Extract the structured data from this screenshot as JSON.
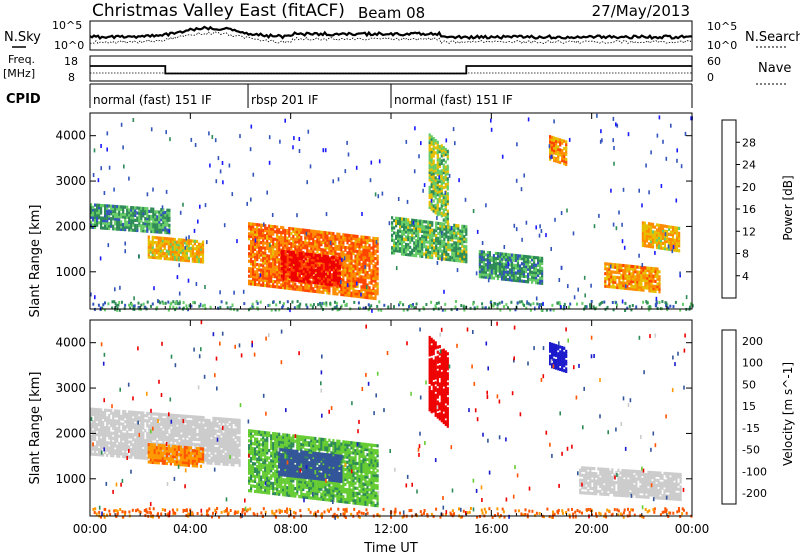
{
  "header": {
    "title": "Christmas Valley East (fitACF)",
    "beam": "Beam 08",
    "date": "27/May/2013"
  },
  "nsky_panel": {
    "left_label": "N.Sky",
    "right_label": "N.Search",
    "left_ticks": [
      "10^5",
      "10^0"
    ],
    "right_ticks": [
      "10^5",
      "10^0"
    ]
  },
  "freq_panel": {
    "left_label_1": "Freq.",
    "left_label_2": "[MHz]",
    "right_label": "Nave",
    "left_ticks": [
      "18",
      "8"
    ],
    "right_ticks": [
      "60",
      "0"
    ],
    "freq_steps": [
      {
        "t0": 0,
        "t1": 3,
        "v": 14
      },
      {
        "t0": 3,
        "t1": 15,
        "v": 11
      },
      {
        "t0": 15,
        "t1": 24,
        "v": 14
      }
    ]
  },
  "cpid": {
    "label": "CPID",
    "segments": [
      {
        "t0": 0,
        "t1": 6.3,
        "label": "normal (fast) 151 IF"
      },
      {
        "t0": 6.3,
        "t1": 12,
        "label": "rbsp 201 IF"
      },
      {
        "t0": 12,
        "t1": 24,
        "label": "normal (fast) 151 IF"
      }
    ]
  },
  "power_panel": {
    "ylabel": "Slant Range [km]",
    "yticks": [
      "1000",
      "2000",
      "3000",
      "4000"
    ],
    "scale_label": "Power [dB]",
    "scale_ticks": [
      "4",
      "8",
      "12",
      "16",
      "20",
      "24",
      "28"
    ],
    "colors": [
      "#1a1aff",
      "#3355bb",
      "#2e8b57",
      "#66cc66",
      "#e6c000",
      "#ff8c00",
      "#ff4500",
      "#ee0000"
    ]
  },
  "velocity_panel": {
    "ylabel": "Slant Range [km]",
    "yticks": [
      "1000",
      "2000",
      "3000",
      "4000"
    ],
    "scale_label": "Velocity [m s^-1]",
    "scale_ticks": [
      "200",
      "100",
      "50",
      "15",
      "-15",
      "-50",
      "-100",
      "-200"
    ],
    "colors": [
      "#1a1acc",
      "#335599",
      "#2e8b57",
      "#66cc33",
      "#cccccc",
      "#ff9900",
      "#ff5500",
      "#ee0000"
    ]
  },
  "x_axis": {
    "label": "Time UT",
    "ticks": [
      "00:00",
      "04:00",
      "08:00",
      "12:00",
      "16:00",
      "20:00",
      "00:00"
    ]
  },
  "chart_data": {
    "type": "heatmap",
    "title": "Christmas Valley East (fitACF)",
    "subtitle": "Beam 08",
    "date": "27/May/2013",
    "xlabel": "Time UT",
    "ylabel": "Slant Range [km]",
    "xlim_hours": [
      0,
      24
    ],
    "ylim_km": [
      180,
      4500
    ],
    "power_scale_db": [
      0,
      30
    ],
    "velocity_scale_ms": [
      -200,
      200
    ],
    "power_features": [
      {
        "t0": 0.0,
        "t1": 3.2,
        "r0": 1900,
        "r1": 2400,
        "db": 10
      },
      {
        "t0": 2.3,
        "t1": 4.5,
        "r0": 1250,
        "r1": 1700,
        "db": 18
      },
      {
        "t0": 6.3,
        "t1": 11.5,
        "r0": 550,
        "r1": 1900,
        "db": 22
      },
      {
        "t0": 7.6,
        "t1": 10.0,
        "r0": 750,
        "r1": 1400,
        "db": 28
      },
      {
        "t0": 12.0,
        "t1": 15.0,
        "r0": 1300,
        "r1": 2100,
        "db": 12
      },
      {
        "t0": 13.5,
        "t1": 14.3,
        "r0": 2200,
        "r1": 3800,
        "db": 14
      },
      {
        "t0": 15.5,
        "t1": 18.0,
        "r0": 800,
        "r1": 1400,
        "db": 10
      },
      {
        "t0": 18.3,
        "t1": 19.0,
        "r0": 3400,
        "r1": 3900,
        "db": 20
      },
      {
        "t0": 20.5,
        "t1": 22.7,
        "r0": 600,
        "r1": 1100,
        "db": 20
      },
      {
        "t0": 22.0,
        "t1": 23.5,
        "r0": 1500,
        "r1": 2000,
        "db": 18
      }
    ],
    "velocity_features": [
      {
        "t0": 0.0,
        "t1": 6.0,
        "r0": 1400,
        "r1": 2400,
        "v": 0
      },
      {
        "t0": 2.3,
        "t1": 4.5,
        "r0": 1300,
        "r1": 1700,
        "v": -30
      },
      {
        "t0": 6.3,
        "t1": 11.5,
        "r0": 550,
        "r1": 1900,
        "v": 30
      },
      {
        "t0": 7.5,
        "t1": 10.0,
        "r0": 1000,
        "r1": 1600,
        "v": 120
      },
      {
        "t0": 13.5,
        "t1": 14.3,
        "r0": 2300,
        "r1": 3900,
        "v": -200
      },
      {
        "t0": 18.3,
        "t1": 19.0,
        "r0": 3400,
        "r1": 3900,
        "v": 200
      },
      {
        "t0": 19.5,
        "t1": 23.5,
        "r0": 600,
        "r1": 1200,
        "v": 0
      }
    ]
  }
}
